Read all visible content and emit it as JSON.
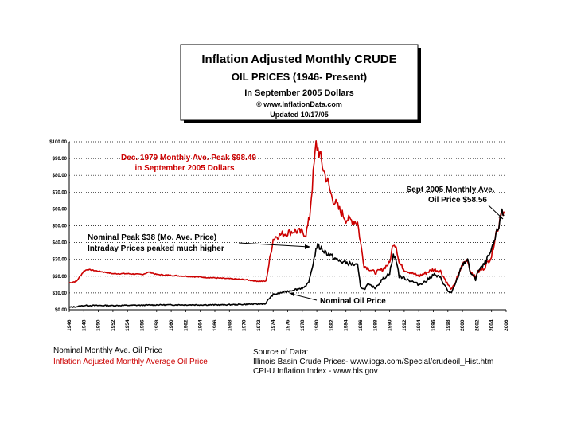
{
  "title_box": {
    "line1": "Inflation Adjusted Monthly CRUDE",
    "line2": "OIL PRICES (1946- Present)",
    "line3": "In September 2005 Dollars",
    "line4": "© www.InflationData.com",
    "line5": "Updated 10/17/05"
  },
  "annotations": {
    "peak_real_1": "Dec. 1979 Monthly Ave. Peak $98.49",
    "peak_real_2": "in September 2005 Dollars",
    "sept2005_1": "Sept 2005 Monthly Ave.",
    "sept2005_2": "Oil Price $58.56",
    "nominal_peak_1": "Nominal Peak $38 (Mo. Ave. Price)",
    "nominal_peak_2": "Intraday Prices peaked much higher",
    "nominal_label": "Nominal Oil Price"
  },
  "legend": {
    "nominal": "Nominal Monthly Ave. Oil Price",
    "inflation": "Inflation Adjusted Monthly Average Oil Price"
  },
  "source": {
    "line1": "Source of Data:",
    "line2": "Illinois Basin Crude Prices- www.ioga.com/Special/crudeoil_Hist.htm",
    "line3": "CPI-U Inflation Index - www.bls.gov"
  },
  "colors": {
    "inflation": "#cc0000",
    "nominal": "#000000"
  },
  "chart_data": {
    "type": "line",
    "ylim": [
      0,
      100
    ],
    "xlim": [
      1946,
      2006
    ],
    "y_ticks": [
      "$0.00",
      "$10.00",
      "$20.00",
      "$30.00",
      "$40.00",
      "$50.00",
      "$60.00",
      "$70.00",
      "$80.00",
      "$90.00",
      "$100.00"
    ],
    "x_ticks": [
      "1946",
      "1948",
      "1950",
      "1952",
      "1954",
      "1956",
      "1958",
      "1960",
      "1962",
      "1964",
      "1966",
      "1968",
      "1970",
      "1972",
      "1974",
      "1976",
      "1978",
      "1980",
      "1982",
      "1984",
      "1986",
      "1988",
      "1990",
      "1992",
      "1994",
      "1996",
      "1998",
      "2000",
      "2002",
      "2004",
      "2006"
    ],
    "grid": "horizontal dotted",
    "series": [
      {
        "name": "Inflation Adjusted Monthly Average Oil Price",
        "color": "#cc0000",
        "x": [
          1946,
          1947,
          1948,
          1948.5,
          1950,
          1952,
          1954,
          1956,
          1957,
          1958,
          1960,
          1962,
          1964,
          1966,
          1968,
          1970,
          1972,
          1973,
          1973.3,
          1974,
          1974.5,
          1976,
          1977,
          1978,
          1978.5,
          1979,
          1979.5,
          1979.9,
          1980.3,
          1981,
          1981.5,
          1982,
          1983,
          1984,
          1985,
          1985.6,
          1986,
          1986.5,
          1987,
          1988,
          1989,
          1990,
          1990.5,
          1990.9,
          1991.3,
          1992,
          1993,
          1994,
          1995,
          1996,
          1997,
          1998,
          1998.5,
          1999,
          2000,
          2000.7,
          2001,
          2001.8,
          2002,
          2003,
          2004,
          2004.6,
          2005,
          2005.3,
          2005.7
        ],
        "values": [
          16,
          17,
          23,
          24,
          23,
          21.5,
          21.5,
          21,
          22.5,
          21,
          20.5,
          20,
          19.5,
          19,
          18.5,
          18,
          17,
          17,
          24,
          42,
          44,
          46,
          47,
          46,
          45,
          55,
          80,
          98.5,
          94,
          82,
          76,
          68,
          60,
          54,
          53,
          52,
          40,
          26,
          25,
          22,
          24,
          28,
          40,
          38,
          28,
          24,
          22,
          20,
          22,
          24,
          23,
          15,
          12,
          16,
          27,
          30,
          24,
          19,
          22,
          25,
          32,
          46,
          50,
          60,
          58.5
        ]
      },
      {
        "name": "Nominal Monthly Ave. Oil Price",
        "color": "#000000",
        "x": [
          1946,
          1947,
          1948,
          1950,
          1952,
          1954,
          1956,
          1958,
          1960,
          1962,
          1964,
          1966,
          1968,
          1970,
          1972,
          1973,
          1973.3,
          1974,
          1975,
          1976,
          1977,
          1978,
          1978.5,
          1979,
          1979.5,
          1980,
          1980.5,
          1981,
          1982,
          1983,
          1984,
          1985,
          1985.6,
          1986,
          1986.5,
          1987,
          1988,
          1989,
          1990,
          1990.5,
          1990.9,
          1991.3,
          1992,
          1993,
          1994,
          1995,
          1996,
          1997,
          1998,
          1998.5,
          1999,
          2000,
          2000.7,
          2001,
          2001.8,
          2002,
          2003,
          2004,
          2004.6,
          2005,
          2005.3,
          2005.7
        ],
        "values": [
          1.5,
          1.8,
          2.5,
          2.5,
          2.5,
          2.6,
          2.7,
          2.9,
          2.9,
          2.9,
          2.9,
          2.9,
          3,
          3.2,
          3.4,
          3.6,
          6,
          9,
          10,
          11,
          12,
          13,
          13.5,
          18,
          28,
          38,
          37,
          35,
          32,
          29,
          28,
          27,
          26,
          14,
          12,
          15,
          13,
          18,
          22,
          32,
          30,
          20,
          19,
          17,
          15,
          17,
          21,
          19,
          11,
          10,
          15,
          27,
          30,
          23,
          18,
          22,
          27,
          35,
          44,
          50,
          58,
          56
        ]
      }
    ]
  }
}
